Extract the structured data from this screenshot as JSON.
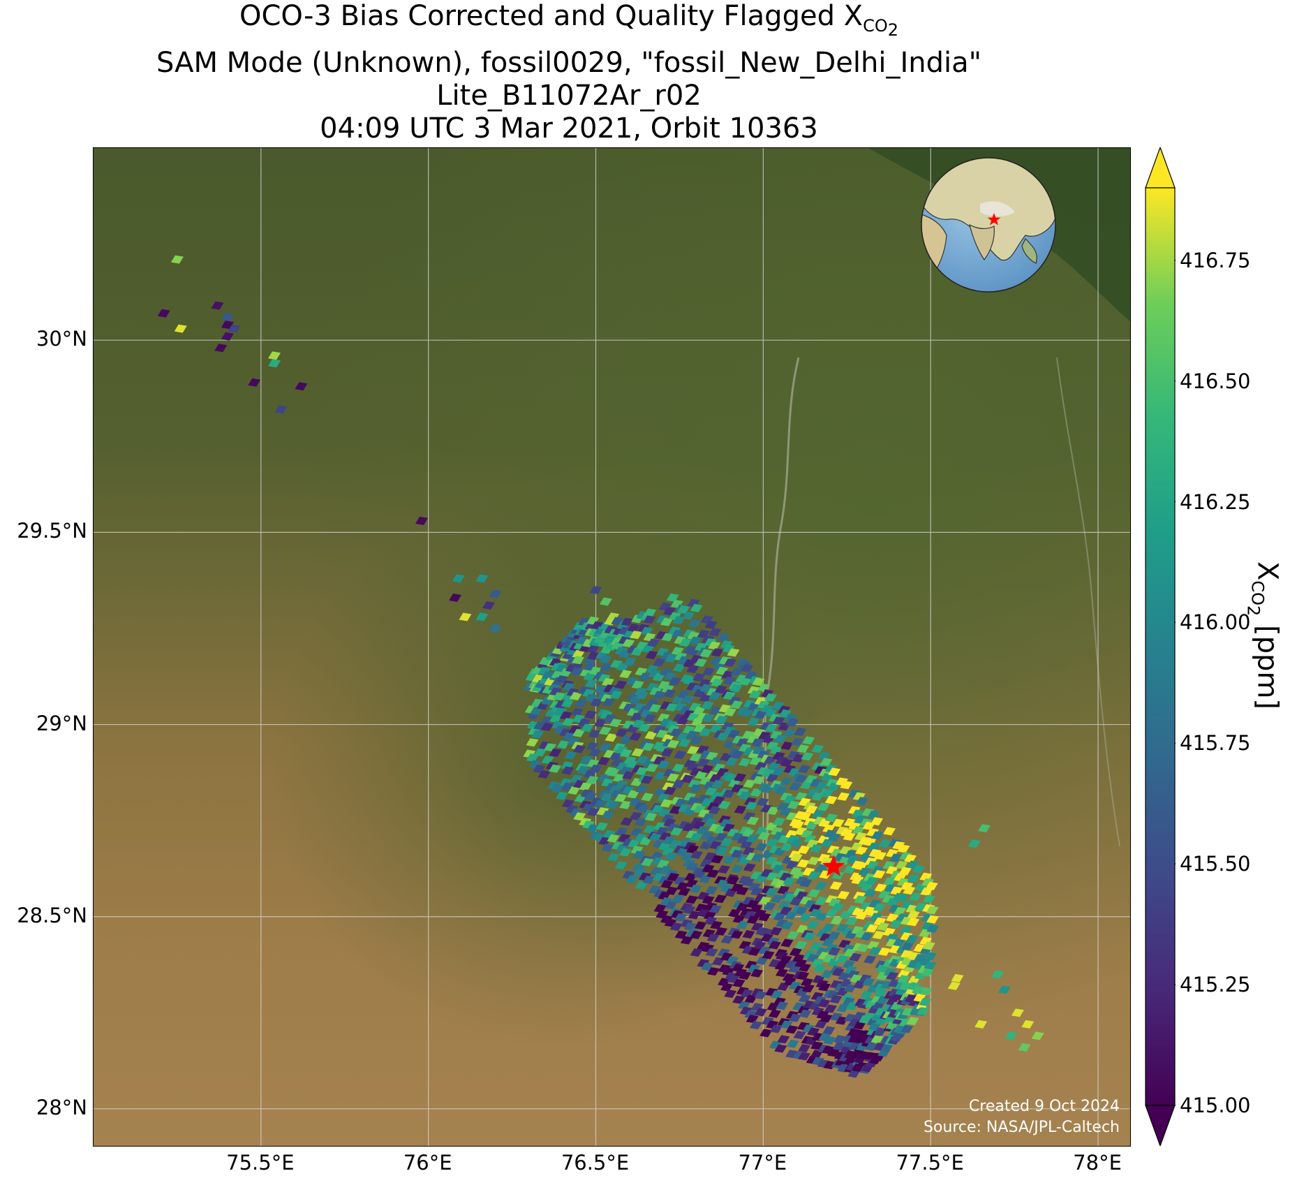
{
  "title": {
    "line1_prefix": "OCO-3 Bias Corrected and Quality Flagged X",
    "line1_sub": "CO",
    "line1_subsub": "2",
    "line2": "SAM Mode (Unknown), fossil0029, \"fossil_New_Delhi_India\"",
    "line3": "Lite_B11072Ar_r02",
    "line4": "04:09 UTC 3 Mar 2021, Orbit 10363"
  },
  "map": {
    "lon_range": [
      75.0,
      78.1
    ],
    "lat_range": [
      27.9,
      30.5
    ],
    "x_ticks": [
      {
        "value": 75.5,
        "label": "75.5°E"
      },
      {
        "value": 76.0,
        "label": "76°E"
      },
      {
        "value": 76.5,
        "label": "76.5°E"
      },
      {
        "value": 77.0,
        "label": "77°E"
      },
      {
        "value": 77.5,
        "label": "77.5°E"
      },
      {
        "value": 78.0,
        "label": "78°E"
      }
    ],
    "y_ticks": [
      {
        "value": 30.0,
        "label": "30°N"
      },
      {
        "value": 29.5,
        "label": "29.5°N"
      },
      {
        "value": 29.0,
        "label": "29°N"
      },
      {
        "value": 28.5,
        "label": "28.5°N"
      },
      {
        "value": 28.0,
        "label": "28°N"
      }
    ],
    "grid": true,
    "target_marker": {
      "lon": 77.21,
      "lat": 28.63,
      "color": "#ff0000",
      "shape": "star"
    },
    "inset_globe": {
      "position": "top-right",
      "marker_color": "#ff0000"
    },
    "background": "satellite imagery"
  },
  "colorbar": {
    "min": 415.0,
    "max": 416.9,
    "colormap": "viridis",
    "extend": "both",
    "ticks": [
      {
        "value": 416.75,
        "label": "416.75"
      },
      {
        "value": 416.5,
        "label": "416.50"
      },
      {
        "value": 416.25,
        "label": "416.25"
      },
      {
        "value": 416.0,
        "label": "416.00"
      },
      {
        "value": 415.75,
        "label": "415.75"
      },
      {
        "value": 415.5,
        "label": "415.50"
      },
      {
        "value": 415.25,
        "label": "415.25"
      },
      {
        "value": 415.0,
        "label": "415.00"
      }
    ],
    "label_prefix": "X",
    "label_sub": "CO",
    "label_subsub": "2",
    "label_suffix": " [ppm]"
  },
  "soundings_sparse": [
    {
      "lon": 75.25,
      "lat": 30.21,
      "v": 416.7
    },
    {
      "lon": 75.21,
      "lat": 30.07,
      "v": 415.05
    },
    {
      "lon": 75.26,
      "lat": 30.03,
      "v": 416.85
    },
    {
      "lon": 75.37,
      "lat": 30.09,
      "v": 415.1
    },
    {
      "lon": 75.4,
      "lat": 30.06,
      "v": 415.6
    },
    {
      "lon": 75.4,
      "lat": 30.04,
      "v": 415.05
    },
    {
      "lon": 75.42,
      "lat": 30.03,
      "v": 415.45
    },
    {
      "lon": 75.4,
      "lat": 30.01,
      "v": 415.1
    },
    {
      "lon": 75.38,
      "lat": 29.98,
      "v": 415.05
    },
    {
      "lon": 75.54,
      "lat": 29.96,
      "v": 416.75
    },
    {
      "lon": 75.54,
      "lat": 29.94,
      "v": 416.3
    },
    {
      "lon": 75.48,
      "lat": 29.89,
      "v": 415.05
    },
    {
      "lon": 75.62,
      "lat": 29.88,
      "v": 415.05
    },
    {
      "lon": 75.56,
      "lat": 29.82,
      "v": 415.45
    },
    {
      "lon": 75.98,
      "lat": 29.53,
      "v": 415.05
    },
    {
      "lon": 76.09,
      "lat": 29.38,
      "v": 416.1
    },
    {
      "lon": 76.16,
      "lat": 29.38,
      "v": 416.1
    },
    {
      "lon": 76.08,
      "lat": 29.33,
      "v": 415.05
    },
    {
      "lon": 76.2,
      "lat": 29.34,
      "v": 415.6
    },
    {
      "lon": 76.18,
      "lat": 29.31,
      "v": 415.3
    },
    {
      "lon": 76.11,
      "lat": 29.28,
      "v": 416.85
    },
    {
      "lon": 76.16,
      "lat": 29.28,
      "v": 416.2
    },
    {
      "lon": 76.2,
      "lat": 29.25,
      "v": 415.8
    },
    {
      "lon": 76.5,
      "lat": 29.35,
      "v": 415.45
    },
    {
      "lon": 76.53,
      "lat": 29.32,
      "v": 416.55
    },
    {
      "lon": 77.63,
      "lat": 28.69,
      "v": 416.3
    },
    {
      "lon": 77.66,
      "lat": 28.73,
      "v": 416.5
    },
    {
      "lon": 77.57,
      "lat": 28.32,
      "v": 416.85
    },
    {
      "lon": 77.58,
      "lat": 28.34,
      "v": 416.85
    },
    {
      "lon": 77.7,
      "lat": 28.35,
      "v": 416.4
    },
    {
      "lon": 77.72,
      "lat": 28.31,
      "v": 416.1
    },
    {
      "lon": 77.65,
      "lat": 28.22,
      "v": 416.85
    },
    {
      "lon": 77.76,
      "lat": 28.25,
      "v": 416.85
    },
    {
      "lon": 77.79,
      "lat": 28.22,
      "v": 416.85
    },
    {
      "lon": 77.82,
      "lat": 28.19,
      "v": 416.7
    },
    {
      "lon": 77.74,
      "lat": 28.19,
      "v": 416.4
    },
    {
      "lon": 77.78,
      "lat": 28.16,
      "v": 416.6
    }
  ],
  "footer": {
    "created": "Created 9 Oct 2024",
    "source": "Source: NASA/JPL-Caltech"
  }
}
